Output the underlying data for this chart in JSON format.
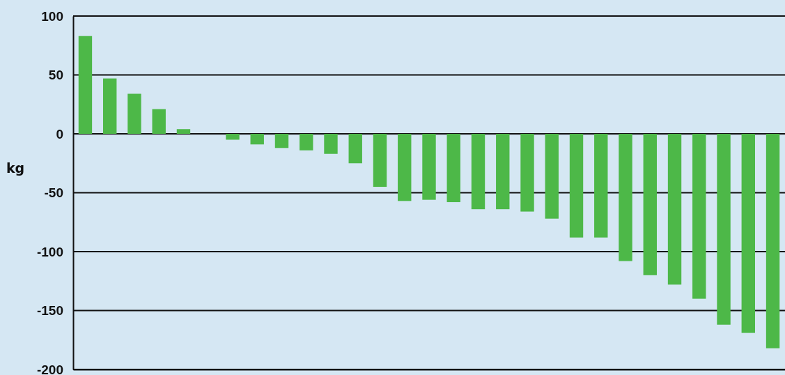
{
  "chart_data": {
    "type": "bar",
    "ylabel": "kg",
    "categories": [
      null,
      null,
      null,
      null,
      null,
      null,
      null,
      null,
      null,
      null,
      null,
      null,
      null,
      null,
      null,
      null,
      null,
      null,
      null,
      null,
      null,
      null,
      null,
      null,
      null,
      null,
      null,
      null,
      null
    ],
    "values": [
      83,
      47,
      34,
      21,
      4,
      0,
      -5,
      -9,
      -12,
      -14,
      -17,
      -25,
      -45,
      -57,
      -56,
      -58,
      -64,
      -64,
      -66,
      -72,
      -88,
      -88,
      -108,
      -120,
      -128,
      -140,
      -162,
      -169,
      -182
    ],
    "color": "#4db848",
    "ylim": [
      -200,
      100
    ],
    "yticks": [
      -200,
      -150,
      -100,
      -50,
      0,
      50,
      100
    ],
    "grid": "y"
  }
}
